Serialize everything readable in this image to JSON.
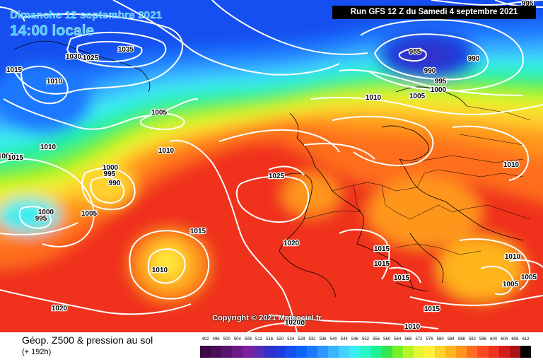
{
  "header": {
    "date_title": "Dimanche 12 septembre 2021",
    "time_title": "14:00 locale",
    "run_info": "Run GFS 12 Z du Samedi 4 septembre 2021"
  },
  "copyright": "Copyright © 2021 Meteociel.fr",
  "footer": {
    "title": "Géop. Z500 & pression au sol",
    "subtitle": "(+ 192h)"
  },
  "scale": {
    "labels": [
      "492",
      "496",
      "500",
      "504",
      "508",
      "512",
      "516",
      "520",
      "524",
      "528",
      "532",
      "536",
      "540",
      "544",
      "548",
      "552",
      "556",
      "560",
      "564",
      "568",
      "572",
      "576",
      "580",
      "584",
      "588",
      "592",
      "596",
      "600",
      "604",
      "608",
      "612"
    ],
    "colors": [
      "#3c0a46",
      "#4b0f5a",
      "#5a1470",
      "#6b1a86",
      "#7a22a0",
      "#5a2ab8",
      "#3232c8",
      "#1e3ce0",
      "#1450f0",
      "#0a64ff",
      "#1e78ff",
      "#2d96ff",
      "#39b4ff",
      "#41d2ff",
      "#3cecf0",
      "#28f5c8",
      "#1ef096",
      "#32e650",
      "#78f028",
      "#b4f528",
      "#e6f532",
      "#fff03c",
      "#ffd22d",
      "#ffb41e",
      "#ff961e",
      "#ff6e1e",
      "#ff4b1e",
      "#f0321e",
      "#d21e1e",
      "#aa1414",
      "#000000"
    ]
  },
  "isobars": [
    {
      "value": "1035",
      "label": "1035"
    },
    {
      "value": "1030",
      "label": "1030"
    },
    {
      "value": "1025",
      "label": "1025"
    },
    {
      "value": "1015",
      "label": "1015"
    },
    {
      "value": "1010",
      "label": "1010"
    },
    {
      "value": "1005",
      "label": "1005"
    },
    {
      "value": "1005",
      "label": "1005"
    },
    {
      "value": "1010",
      "label": "1010"
    },
    {
      "value": "1015",
      "label": "1015"
    },
    {
      "value": "1000",
      "label": "1000"
    },
    {
      "value": "995",
      "label": "995"
    },
    {
      "value": "990",
      "label": "990"
    },
    {
      "value": "1000",
      "label": "1000"
    },
    {
      "value": "995",
      "label": "995"
    },
    {
      "value": "1005",
      "label": "1005"
    },
    {
      "value": "1010",
      "label": "1010"
    },
    {
      "value": "1015",
      "label": "1015"
    },
    {
      "value": "1010",
      "label": "1010"
    },
    {
      "value": "1020",
      "label": "1020"
    },
    {
      "value": "1020",
      "label": "1020"
    },
    {
      "value": "1025",
      "label": "1025"
    },
    {
      "value": "985",
      "label": "985"
    },
    {
      "value": "990",
      "label": "990"
    },
    {
      "value": "990",
      "label": "990"
    },
    {
      "value": "995",
      "label": "995"
    },
    {
      "value": "1000",
      "label": "1000"
    },
    {
      "value": "1005",
      "label": "1005"
    },
    {
      "value": "1010",
      "label": "1010"
    },
    {
      "value": "995",
      "label": "995"
    },
    {
      "value": "1010",
      "label": "1010"
    },
    {
      "value": "1015",
      "label": "1015"
    },
    {
      "value": "1015",
      "label": "1015"
    },
    {
      "value": "1015",
      "label": "1015"
    },
    {
      "value": "1015",
      "label": "1015"
    },
    {
      "value": "1010",
      "label": "1010"
    },
    {
      "value": "1010",
      "label": "1010"
    },
    {
      "value": "1010",
      "label": "1010"
    },
    {
      "value": "1005",
      "label": "1005"
    },
    {
      "value": "1005",
      "label": "1005"
    },
    {
      "value": "1020",
      "label": "1020"
    },
    {
      "value": "1010",
      "label": "1010"
    }
  ]
}
